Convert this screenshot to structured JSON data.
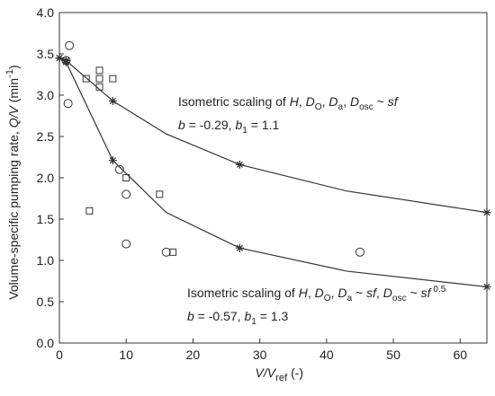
{
  "chart_data": {
    "type": "scatter",
    "xlabel": [
      [
        "V/V",
        "i"
      ],
      [
        "ref",
        "sub"
      ],
      [
        " (-)",
        "n"
      ]
    ],
    "ylabel": [
      [
        "Volume-specific pumping rate, ",
        "n"
      ],
      [
        "Q/V",
        "i"
      ],
      [
        " (min",
        "n"
      ],
      [
        "-1",
        "sup"
      ],
      [
        ")",
        "n"
      ]
    ],
    "xlim": [
      0,
      64
    ],
    "ylim": [
      0,
      4
    ],
    "xticks": [
      0,
      10,
      20,
      30,
      40,
      50,
      60
    ],
    "yticks": [
      {
        "value": 0,
        "label": "0.0"
      },
      0.5,
      {
        "value": 1,
        "label": "1.0"
      },
      1.5,
      {
        "value": 2,
        "label": "2.0"
      },
      2.5,
      {
        "value": 3,
        "label": "3.0"
      },
      3.5,
      {
        "value": 4,
        "label": "4.0"
      }
    ],
    "color": "#333333",
    "series": [
      {
        "marker": "circle",
        "x": [
          1,
          1.5,
          1.3,
          9,
          10,
          10,
          16,
          45
        ],
        "y": [
          3.42,
          3.6,
          2.9,
          2.1,
          1.8,
          1.2,
          1.1,
          1.1
        ]
      },
      {
        "marker": "square",
        "x": [
          4,
          6,
          6,
          6,
          8,
          10,
          15,
          4.5,
          17
        ],
        "y": [
          3.2,
          3.3,
          3.2,
          3.1,
          3.2,
          2.0,
          1.8,
          1.6,
          1.1
        ]
      },
      {
        "marker": "line",
        "x": [
          0,
          1,
          8,
          16,
          27,
          43,
          64
        ],
        "y": [
          3.45,
          3.42,
          2.93,
          2.53,
          2.16,
          1.84,
          1.58
        ]
      },
      {
        "marker": "star",
        "x": [
          0,
          1,
          8,
          27,
          64
        ],
        "y": [
          3.45,
          3.42,
          2.93,
          2.16,
          1.58
        ]
      },
      {
        "marker": "line",
        "x": [
          0,
          1,
          8,
          16,
          27,
          43,
          64
        ],
        "y": [
          3.45,
          3.4,
          2.21,
          1.58,
          1.15,
          0.87,
          0.68
        ]
      },
      {
        "marker": "star",
        "x": [
          0,
          1,
          8,
          27,
          64
        ],
        "y": [
          3.45,
          3.4,
          2.21,
          1.15,
          0.68
        ]
      }
    ],
    "annotations": [
      [
        [
          "Isometric scaling of ",
          "n"
        ],
        [
          "H",
          "i"
        ],
        [
          ", ",
          "n"
        ],
        [
          "D",
          "i"
        ],
        [
          "O",
          "sub"
        ],
        [
          ", ",
          "n"
        ],
        [
          "D",
          "i"
        ],
        [
          "a",
          "sub"
        ],
        [
          ", ",
          "n"
        ],
        [
          "D",
          "i"
        ],
        [
          "osc",
          "sub"
        ],
        [
          " ~ ",
          "n"
        ],
        [
          "sf",
          "i"
        ]
      ],
      [
        [
          "b",
          "i"
        ],
        [
          " = -0.29, ",
          "n"
        ],
        [
          "b",
          "i"
        ],
        [
          "1",
          "sub"
        ],
        [
          " = 1.1",
          "n"
        ]
      ],
      [
        [
          "Isometric scaling of ",
          "n"
        ],
        [
          "H",
          "i"
        ],
        [
          ", ",
          "n"
        ],
        [
          "D",
          "i"
        ],
        [
          "O",
          "sub"
        ],
        [
          ", ",
          "n"
        ],
        [
          "D",
          "i"
        ],
        [
          "a",
          "sub"
        ],
        [
          " ~ ",
          "n"
        ],
        [
          "sf",
          "i"
        ],
        [
          ", ",
          "n"
        ],
        [
          "D",
          "i"
        ],
        [
          "osc",
          "sub"
        ],
        [
          " ~ ",
          "n"
        ],
        [
          "sf",
          "i"
        ],
        [
          " 0.5",
          "sup"
        ]
      ],
      [
        [
          "b",
          "i"
        ],
        [
          " = -0.57, ",
          "n"
        ],
        [
          "b",
          "i"
        ],
        [
          "1",
          "sub"
        ],
        [
          " = 1.3",
          "n"
        ]
      ]
    ]
  }
}
